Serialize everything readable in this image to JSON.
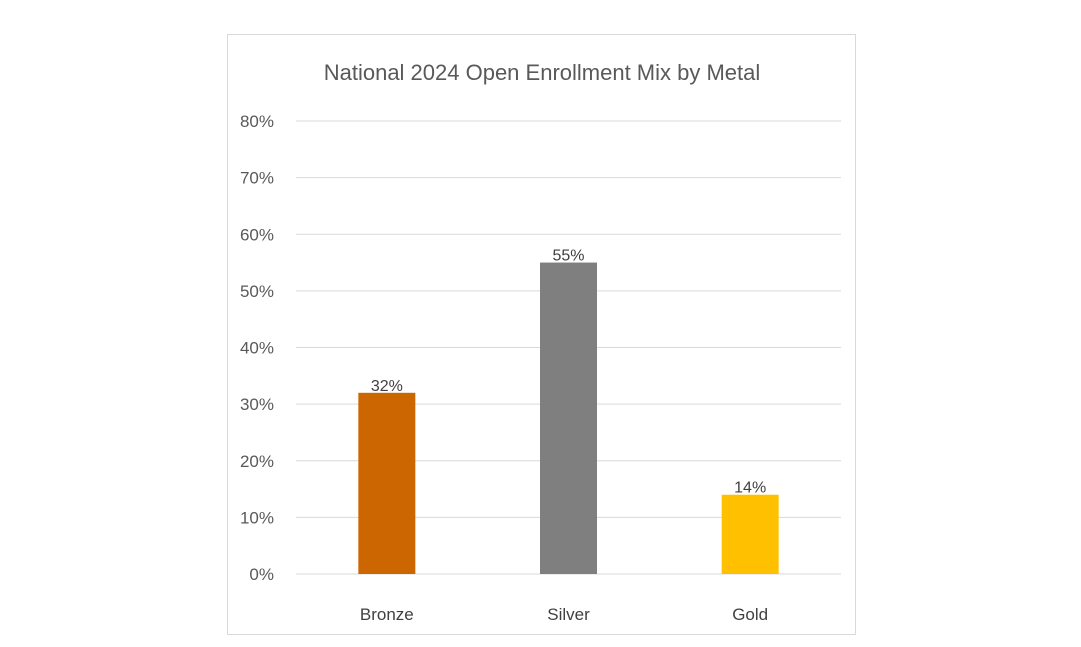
{
  "chart_data": {
    "type": "bar",
    "title": "National 2024 Open Enrollment Mix by Metal",
    "categories": [
      "Bronze",
      "Silver",
      "Gold"
    ],
    "values": [
      32,
      55,
      14
    ],
    "data_labels": [
      "32%",
      "55%",
      "14%"
    ],
    "colors": [
      "#cc6600",
      "#7f7f7f",
      "#ffc000"
    ],
    "ylim": [
      0,
      80
    ],
    "ytick_values": [
      0,
      10,
      20,
      30,
      40,
      50,
      60,
      70,
      80
    ],
    "ytick_labels": [
      "0%",
      "10%",
      "20%",
      "30%",
      "40%",
      "50%",
      "60%",
      "70%",
      "80%"
    ],
    "xlabel": "",
    "ylabel": "",
    "grid": true,
    "legend": "none"
  }
}
